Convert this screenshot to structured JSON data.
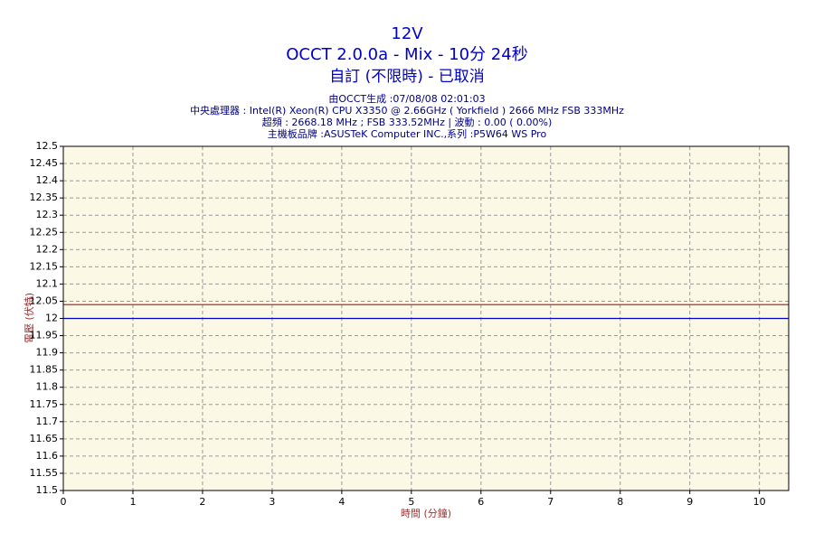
{
  "chart_data": {
    "type": "line",
    "title": "12V",
    "subtitle": "OCCT 2.0.0a - Mix - 10分 24秒",
    "subtitle2": "自訂 (不限時) - 已取消",
    "info": [
      "由OCCT生成 :07/08/08 02:01:03",
      "中央處理器 : Intel(R) Xeon(R) CPU X3350 @ 2.66GHz ( Yorkfield ) 2666 MHz FSB 333MHz",
      "超頻 : 2668.18 MHz ; FSB 333.52MHz | 波動 : 0.00 ( 0.00%)",
      "主機板品牌 :ASUSTeK Computer INC.,系列 :P5W64 WS Pro"
    ],
    "x_label": "時間 (分鐘)",
    "y_label": "電壓 (伏特)",
    "x": [
      0,
      10.42
    ],
    "series": [
      {
        "color": "#b03030",
        "values": [
          12.04,
          12.04
        ]
      },
      {
        "color": "#0000cc",
        "values": [
          12.0,
          12.0
        ]
      }
    ],
    "xlim": [
      0,
      10.42
    ],
    "xticks": [
      0,
      1,
      2,
      3,
      4,
      5,
      6,
      7,
      8,
      9,
      10
    ],
    "ylim": [
      11.5,
      12.5
    ],
    "yticks": [
      11.5,
      11.55,
      11.6,
      11.65,
      11.7,
      11.75,
      11.8,
      11.85,
      11.9,
      11.95,
      12,
      12.05,
      12.1,
      12.15,
      12.2,
      12.25,
      12.3,
      12.35,
      12.4,
      12.45,
      12.5
    ],
    "grid": true,
    "plot_background": "#fcf8e6"
  }
}
